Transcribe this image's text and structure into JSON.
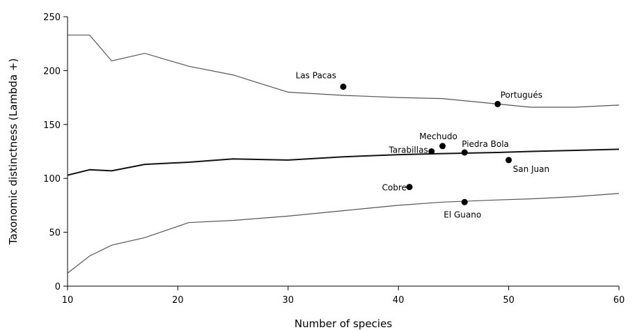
{
  "chart_data": {
    "type": "line",
    "xlabel": "Number of species",
    "ylabel": "Taxonomic distinctness (Lambda +)",
    "xlim": [
      10,
      60
    ],
    "ylim": [
      0,
      250
    ],
    "xticks": [
      10,
      20,
      30,
      40,
      50,
      60
    ],
    "yticks": [
      0,
      50,
      100,
      150,
      200,
      250
    ],
    "grid": false,
    "series": [
      {
        "role": "upper-limit",
        "color": "#555555",
        "x": [
          10,
          12,
          14,
          17,
          21,
          25,
          30,
          35,
          40,
          44,
          49,
          52,
          56,
          60
        ],
        "y": [
          233,
          233,
          209,
          216,
          204,
          196,
          180,
          177,
          175,
          174,
          169,
          166,
          166,
          168
        ]
      },
      {
        "role": "mean",
        "color": "#111111",
        "x": [
          10,
          12,
          14,
          17,
          21,
          25,
          30,
          35,
          40,
          44,
          49,
          52,
          56,
          60
        ],
        "y": [
          103,
          108,
          107,
          113,
          115,
          118,
          117,
          120,
          122,
          123,
          124,
          125,
          126,
          127
        ]
      },
      {
        "role": "lower-limit",
        "color": "#555555",
        "x": [
          10,
          12,
          14,
          17,
          21,
          25,
          30,
          35,
          40,
          44,
          49,
          52,
          56,
          60
        ],
        "y": [
          12,
          28,
          38,
          45,
          59,
          61,
          65,
          70,
          75,
          78,
          80,
          81,
          83,
          86
        ]
      }
    ],
    "points": [
      {
        "label": "Las Pacas",
        "x": 35,
        "y": 185
      },
      {
        "label": "Portugués",
        "x": 49,
        "y": 169
      },
      {
        "label": "Mechudo",
        "x": 44,
        "y": 130
      },
      {
        "label": "Tarabillas",
        "x": 43,
        "y": 125
      },
      {
        "label": "Piedra Bola",
        "x": 46,
        "y": 124
      },
      {
        "label": "San Juan",
        "x": 50,
        "y": 117
      },
      {
        "label": "Cobre",
        "x": 41,
        "y": 92
      },
      {
        "label": "El Guano",
        "x": 46,
        "y": 78
      }
    ]
  }
}
